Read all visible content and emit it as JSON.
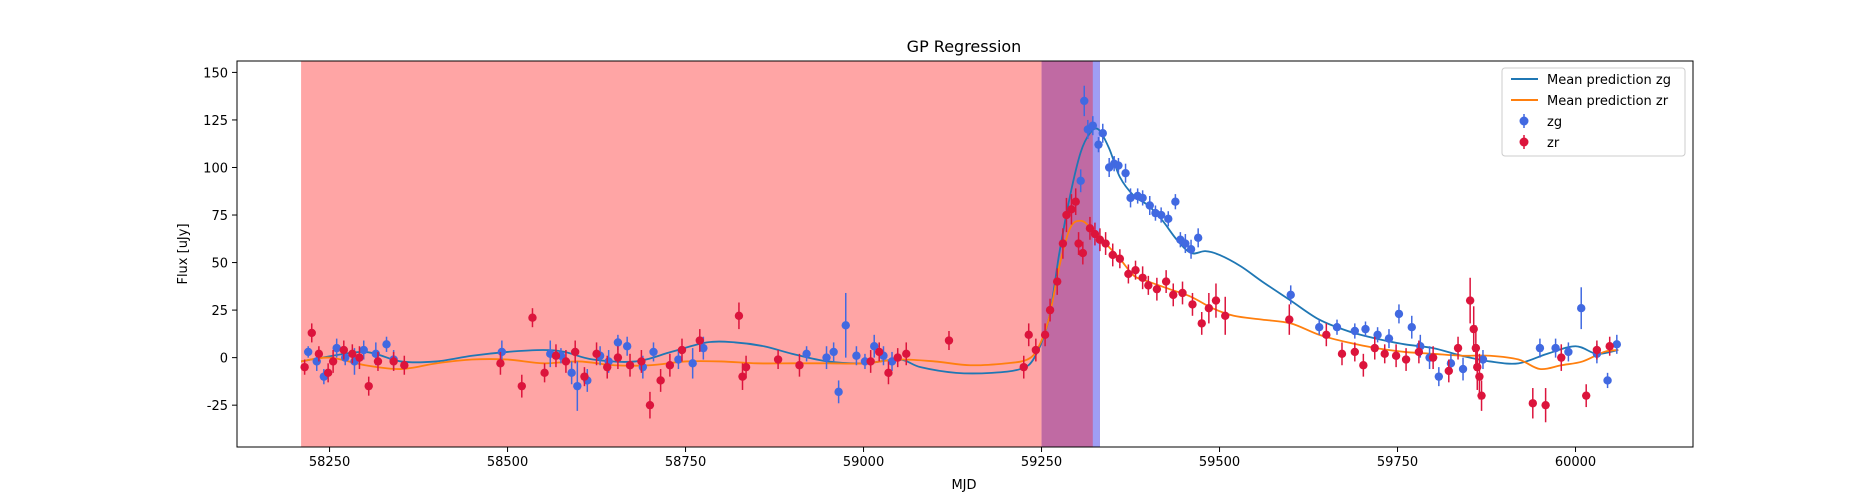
{
  "chart_data": {
    "type": "scatter",
    "title": "GP Regression",
    "xlabel": "MJD",
    "ylabel": "Flux [uJy]",
    "xlim": [
      58120,
      60165
    ],
    "ylim": [
      -47,
      156
    ],
    "x_ticks": [
      58250,
      58500,
      58750,
      59000,
      59250,
      59500,
      59750,
      60000
    ],
    "y_ticks": [
      -25,
      0,
      25,
      50,
      75,
      100,
      125,
      150
    ],
    "grid": false,
    "legend_position": "top-right",
    "shaded_regions": [
      {
        "x0": 58210,
        "x1": 59250,
        "color": "#ffa5a5"
      },
      {
        "x0": 59250,
        "x1": 59332,
        "color": "#c06aa3"
      },
      {
        "x0": 59322,
        "x1": 59332,
        "color": "#9f9ef4"
      }
    ],
    "series": [
      {
        "name": "Mean prediction zg",
        "kind": "line",
        "color": "#1f77b4",
        "x": [
          58210,
          58240,
          58300,
          58350,
          58400,
          58450,
          58500,
          58550,
          58580,
          58620,
          58680,
          58730,
          58780,
          58820,
          58860,
          58900,
          58950,
          59000,
          59050,
          59080,
          59130,
          59180,
          59220,
          59240,
          59260,
          59275,
          59290,
          59305,
          59318,
          59330,
          59345,
          59360,
          59380,
          59400,
          59420,
          59440,
          59460,
          59480,
          59500,
          59530,
          59560,
          59600,
          59640,
          59680,
          59720,
          59760,
          59800,
          59840,
          59880,
          59920,
          59960,
          60000,
          60030,
          60060
        ],
        "y": [
          -2,
          0,
          3,
          -2,
          -2,
          1,
          3,
          4,
          3,
          -1,
          -2,
          3,
          8,
          8,
          6,
          2,
          -2,
          -3,
          -1,
          -5,
          -8,
          -8,
          -6,
          0,
          20,
          55,
          85,
          108,
          118,
          120,
          110,
          95,
          85,
          80,
          72,
          62,
          55,
          56,
          54,
          48,
          40,
          30,
          20,
          14,
          10,
          7,
          5,
          1,
          -2,
          -3,
          2,
          6,
          2,
          4
        ]
      },
      {
        "name": "Mean prediction zr",
        "kind": "line",
        "color": "#ff7f0e",
        "x": [
          58210,
          58250,
          58300,
          58350,
          58400,
          58450,
          58500,
          58550,
          58600,
          58650,
          58700,
          58750,
          58800,
          58850,
          58900,
          58950,
          59000,
          59050,
          59100,
          59150,
          59200,
          59230,
          59245,
          59260,
          59275,
          59290,
          59305,
          59320,
          59340,
          59360,
          59380,
          59400,
          59430,
          59460,
          59490,
          59520,
          59560,
          59600,
          59640,
          59680,
          59720,
          59760,
          59800,
          59840,
          59880,
          59920,
          59950,
          59980,
          60010,
          60040,
          60060
        ],
        "y": [
          -2,
          0,
          -4,
          -6,
          -3,
          -1,
          -1,
          -3,
          -2,
          -4,
          -4,
          -2,
          -2,
          -3,
          -3,
          -3,
          -3,
          -1,
          -2,
          -4,
          -3,
          -1,
          5,
          20,
          48,
          68,
          72,
          68,
          60,
          52,
          43,
          40,
          36,
          32,
          26,
          22,
          20,
          18,
          12,
          8,
          5,
          3,
          2,
          1,
          1,
          -1,
          -6,
          -4,
          -2,
          3,
          4
        ]
      },
      {
        "name": "zg",
        "kind": "errorbar",
        "color": "#4169e1",
        "x": [
          58220,
          58232,
          58242,
          58260,
          58272,
          58285,
          58298,
          58315,
          58330,
          58340,
          58492,
          58560,
          58575,
          58590,
          58598,
          58612,
          58630,
          58642,
          58655,
          58668,
          58690,
          58705,
          58740,
          58760,
          58775,
          58920,
          58948,
          58958,
          58965,
          58975,
          58990,
          59002,
          59015,
          59028,
          59040,
          59305,
          59310,
          59315,
          59322,
          59330,
          59336,
          59345,
          59352,
          59358,
          59368,
          59375,
          59385,
          59392,
          59402,
          59410,
          59418,
          59428,
          59438,
          59445,
          59452,
          59460,
          59470,
          59600,
          59640,
          59665,
          59690,
          59705,
          59722,
          59738,
          59752,
          59770,
          59782,
          59795,
          59808,
          59825,
          59842,
          59870,
          59950,
          59972,
          59990,
          60008,
          60030,
          60045,
          60058
        ],
        "y": [
          3,
          -2,
          -10,
          5,
          0,
          -2,
          4,
          2,
          7,
          -1,
          3,
          2,
          1,
          -8,
          -15,
          -12,
          1,
          -2,
          8,
          6,
          -5,
          3,
          -1,
          -3,
          5,
          2,
          0,
          3,
          -18,
          17,
          1,
          -2,
          6,
          1,
          -2,
          93,
          135,
          120,
          122,
          112,
          118,
          100,
          102,
          101,
          97,
          84,
          85,
          84,
          80,
          76,
          75,
          73,
          82,
          62,
          60,
          57,
          63,
          33,
          16,
          16,
          14,
          15,
          12,
          10,
          23,
          16,
          6,
          0,
          -10,
          -3,
          -6,
          -1,
          5,
          5,
          3,
          26,
          2,
          -12,
          7
        ],
        "err": [
          3,
          5,
          4,
          5,
          4,
          7,
          5,
          6,
          4,
          5,
          6,
          7,
          4,
          6,
          13,
          6,
          5,
          6,
          4,
          5,
          6,
          5,
          5,
          8,
          6,
          4,
          6,
          5,
          6,
          17,
          5,
          4,
          6,
          5,
          5,
          6,
          8,
          5,
          5,
          4,
          5,
          5,
          4,
          4,
          5,
          5,
          4,
          4,
          5,
          4,
          4,
          4,
          4,
          4,
          5,
          5,
          5,
          5,
          4,
          4,
          4,
          4,
          4,
          5,
          5,
          6,
          6,
          6,
          5,
          5,
          6,
          5,
          5,
          5,
          5,
          11,
          5,
          4,
          5
        ]
      },
      {
        "name": "zr",
        "kind": "errorbar",
        "color": "#dc143c",
        "x": [
          58215,
          58225,
          58235,
          58248,
          58255,
          58270,
          58282,
          58292,
          58305,
          58318,
          58340,
          58355,
          58490,
          58520,
          58535,
          58552,
          58568,
          58582,
          58595,
          58608,
          58625,
          58640,
          58655,
          58672,
          58688,
          58700,
          58715,
          58728,
          58745,
          58770,
          58825,
          58830,
          58835,
          58880,
          58910,
          59010,
          59022,
          59035,
          59048,
          59060,
          59120,
          59225,
          59232,
          59242,
          59255,
          59262,
          59272,
          59280,
          59285,
          59292,
          59298,
          59302,
          59308,
          59318,
          59325,
          59332,
          59340,
          59350,
          59360,
          59372,
          59382,
          59392,
          59400,
          59412,
          59425,
          59435,
          59448,
          59462,
          59475,
          59485,
          59495,
          59508,
          59598,
          59650,
          59672,
          59690,
          59702,
          59718,
          59732,
          59748,
          59762,
          59780,
          59800,
          59822,
          59835,
          59852,
          59857,
          59860,
          59862,
          59865,
          59868,
          59940,
          59958,
          59980,
          60015,
          60030,
          60048
        ],
        "y": [
          -5,
          13,
          2,
          -8,
          -2,
          4,
          2,
          0,
          -15,
          -2,
          -2,
          -4,
          -3,
          -15,
          21,
          -8,
          1,
          -2,
          3,
          -10,
          2,
          -5,
          0,
          -4,
          -2,
          -25,
          -12,
          -4,
          4,
          9,
          22,
          -10,
          -5,
          -1,
          -4,
          -2,
          3,
          -8,
          0,
          2,
          9,
          -5,
          12,
          4,
          12,
          25,
          40,
          60,
          75,
          78,
          82,
          60,
          55,
          68,
          65,
          62,
          60,
          54,
          52,
          44,
          46,
          42,
          38,
          36,
          40,
          33,
          34,
          28,
          18,
          26,
          30,
          22,
          20,
          12,
          2,
          3,
          -4,
          5,
          2,
          1,
          -1,
          3,
          0,
          -7,
          5,
          30,
          15,
          5,
          -5,
          -10,
          -20,
          -24,
          -25,
          0,
          -20,
          4,
          6
        ],
        "err": [
          4,
          5,
          4,
          5,
          6,
          5,
          5,
          6,
          5,
          5,
          5,
          5,
          6,
          6,
          5,
          5,
          6,
          6,
          6,
          5,
          6,
          6,
          6,
          6,
          6,
          7,
          6,
          6,
          6,
          6,
          7,
          7,
          6,
          5,
          6,
          6,
          5,
          6,
          5,
          6,
          5,
          6,
          6,
          6,
          6,
          6,
          7,
          8,
          9,
          8,
          7,
          6,
          6,
          6,
          6,
          6,
          6,
          6,
          5,
          5,
          5,
          6,
          5,
          6,
          6,
          6,
          6,
          6,
          6,
          8,
          9,
          10,
          8,
          6,
          6,
          5,
          6,
          6,
          5,
          6,
          6,
          6,
          6,
          6,
          6,
          12,
          12,
          12,
          12,
          12,
          8,
          8,
          9,
          7,
          6,
          5,
          5
        ]
      }
    ]
  }
}
